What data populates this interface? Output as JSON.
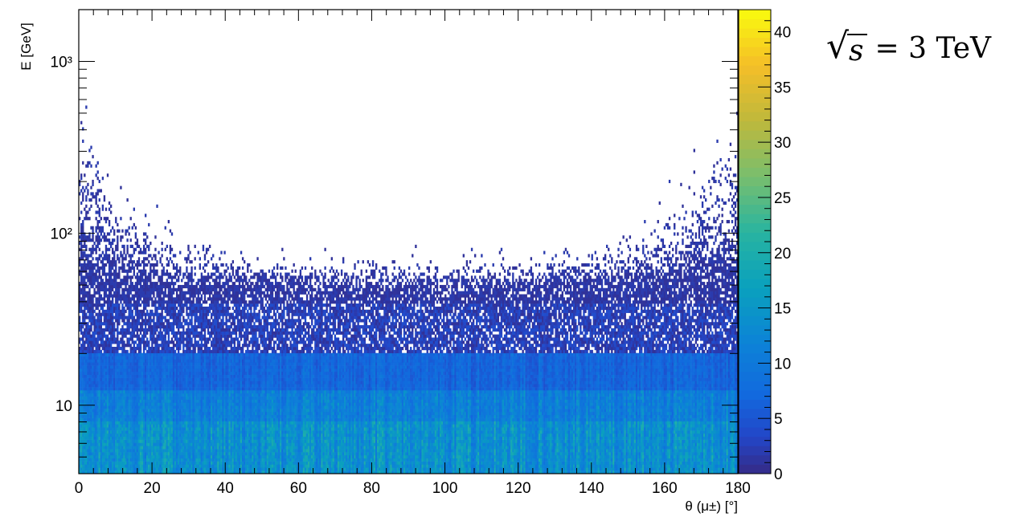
{
  "chart_data": {
    "type": "heatmap",
    "title": "",
    "xlabel": "θ (μ±) [°]",
    "ylabel": "E [GeV]",
    "xlim": [
      0,
      180
    ],
    "ylim": [
      4,
      2000
    ],
    "yscale": "log",
    "xticks": [
      "0",
      "20",
      "40",
      "60",
      "80",
      "100",
      "120",
      "140",
      "160",
      "180"
    ],
    "yticks": [
      {
        "value": 10,
        "label": "10"
      },
      {
        "value": 100,
        "label": "10²"
      },
      {
        "value": 1000,
        "label": "10³"
      }
    ],
    "colorbar": {
      "range": [
        0,
        42
      ],
      "ticks": [
        "0",
        "5",
        "10",
        "15",
        "20",
        "25",
        "30",
        "35",
        "40"
      ]
    },
    "annotation": {
      "radicand": "s",
      "rest": "= 3 TeV"
    },
    "description_bands": [
      {
        "e_min": 4,
        "e_max": 8,
        "typical_count": 14
      },
      {
        "e_min": 8,
        "e_max": 12,
        "typical_count": 11
      },
      {
        "e_min": 12,
        "e_max": 20,
        "typical_count": 7
      },
      {
        "e_min": 20,
        "e_max": 50,
        "typical_count": 3
      },
      {
        "e_min": 50,
        "e_max": 600,
        "typical_count": 1
      }
    ],
    "grid": false
  }
}
